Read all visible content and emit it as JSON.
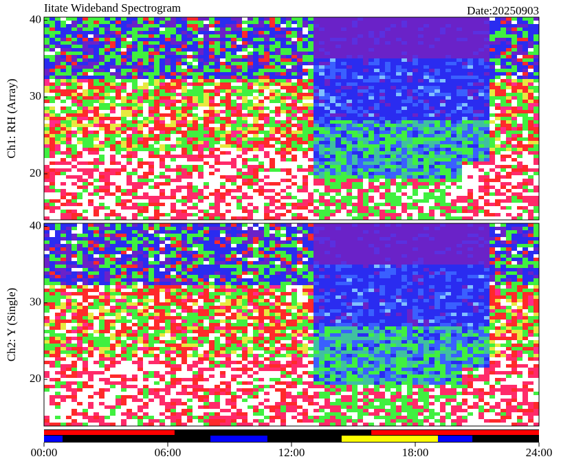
{
  "title": "Iitate Wideband Spectrogram",
  "date": "Date:20250903",
  "chart_data": [
    {
      "type": "heatmap",
      "ylabel": "Ch1: RH (Array)",
      "xlim": [
        0,
        24
      ],
      "ylim": [
        14,
        40.4
      ],
      "yticks": [
        20,
        30,
        40
      ]
    },
    {
      "type": "heatmap",
      "ylabel": "Ch2: Y (Single)",
      "xlim": [
        0,
        24
      ],
      "ylim": [
        13.9,
        40.4
      ],
      "yticks": [
        20,
        30,
        40
      ],
      "xticks": [
        {
          "value": 0,
          "label": "00:00"
        },
        {
          "value": 6,
          "label": "06:00"
        },
        {
          "value": 12,
          "label": "12:00"
        },
        {
          "value": 18,
          "label": "18:00"
        },
        {
          "value": 24,
          "label": "24:00"
        }
      ]
    }
  ],
  "status_bar": {
    "rows": [
      [
        {
          "start": 0,
          "end": 6.33,
          "color": "#ff0000"
        },
        {
          "start": 15.87,
          "end": 24,
          "color": "#ff0000"
        }
      ],
      [
        {
          "start": 0,
          "end": 0.9,
          "color": "#0000ff"
        },
        {
          "start": 8.07,
          "end": 10.83,
          "color": "#0000ff"
        },
        {
          "start": 14.43,
          "end": 19.1,
          "color": "#ffff00"
        },
        {
          "start": 19.1,
          "end": 20.77,
          "color": "#0000ff"
        }
      ]
    ]
  }
}
